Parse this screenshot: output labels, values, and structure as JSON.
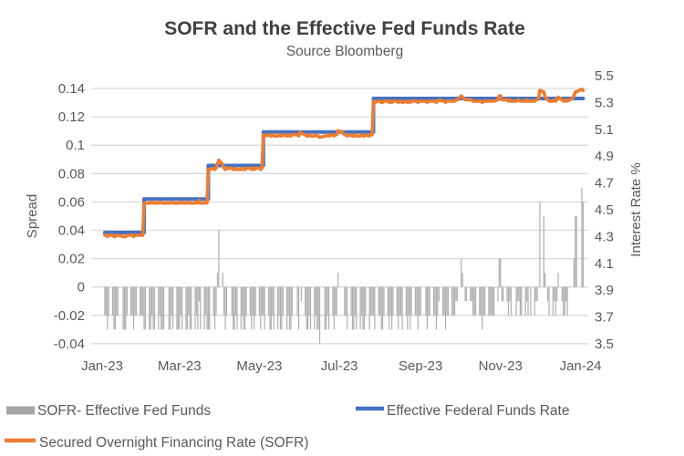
{
  "chart": {
    "title": "SOFR and the Effective Fed Funds Rate",
    "subtitle": "Source Bloomberg",
    "left_axis": {
      "title": "Spread",
      "tick_labels": [
        "0.14",
        "0.12",
        "0.1",
        "0.08",
        "0.06",
        "0.04",
        "0.02",
        "0",
        "-0.02",
        "-0.04"
      ]
    },
    "right_axis": {
      "title": "Interest Rate %",
      "tick_labels": [
        "5.5",
        "5.3",
        "5.1",
        "4.9",
        "4.7",
        "4.5",
        "4.3",
        "4.1",
        "3.9",
        "3.7",
        "3.5"
      ]
    },
    "x_axis": {
      "tick_labels": [
        "Jan-23",
        "Mar-23",
        "May-23",
        "Jul-23",
        "Sep-23",
        "Nov-23",
        "Jan-24"
      ],
      "tick_day_offsets": [
        0,
        59,
        120,
        181,
        243,
        304,
        365
      ]
    },
    "legend": [
      {
        "label": "SOFR- Effective Fed Funds",
        "swatch": "bar"
      },
      {
        "label": "Effective Federal Funds Rate",
        "swatch": "line"
      },
      {
        "label": "Secured Overnight Financing Rate (SOFR)",
        "swatch": "line"
      }
    ],
    "colors": {
      "title": "#404040",
      "text": "#595959",
      "gridline": "#d9d9d9",
      "bar": "#aeaeae",
      "legend_bar_swatch": "#a6a6a6",
      "effr_line": "#4472C4",
      "sofr_line": "#ED7D31"
    }
  },
  "chart_data": {
    "type": "combo",
    "title": "SOFR and the Effective Fed Funds Rate",
    "subtitle": "Source Bloomberg",
    "x_unit": "day offset from 2023-01-01 (0 = Jan 1 2023, weekends skipped in data)",
    "x_range_days": [
      0,
      367
    ],
    "left_axis": {
      "label": "Spread",
      "range": [
        -0.04,
        0.14
      ],
      "note": "bar series axis"
    },
    "right_axis": {
      "label": "Interest Rate %",
      "range": [
        3.5,
        5.5
      ],
      "note": "line series axis"
    },
    "series": [
      {
        "name": "SOFR- Effective Fed Funds",
        "type": "bar",
        "axis": "left",
        "derived": "sofr_daily_value minus effr_step_value, per business day"
      },
      {
        "name": "Effective Federal Funds Rate",
        "type": "line",
        "axis": "right",
        "steps": [
          [
            0,
            4.33
          ],
          [
            32,
            4.58
          ],
          [
            81,
            4.83
          ],
          [
            123,
            5.08
          ],
          [
            207,
            5.33
          ]
        ],
        "start_day": 2,
        "end_day": 367
      },
      {
        "name": "Secured Overnight Financing Rate (SOFR)",
        "type": "line",
        "axis": "right",
        "runs_format": "[start_day, [values on consecutive business days]]",
        "runs": [
          [
            2,
            [
              4.31,
              4.31,
              4.3,
              4.31
            ]
          ],
          [
            8,
            [
              4.31,
              4.3,
              4.3,
              4.31,
              4.31
            ]
          ],
          [
            16,
            [
              4.3,
              4.3,
              4.3,
              4.31
            ]
          ],
          [
            22,
            [
              4.31,
              4.31,
              4.3,
              4.31,
              4.31
            ]
          ],
          [
            29,
            [
              4.31,
              4.31,
              4.31,
              4.55,
              4.55
            ]
          ],
          [
            36,
            [
              4.55,
              4.55,
              4.56,
              4.55,
              4.55
            ]
          ],
          [
            43,
            [
              4.55,
              4.56,
              4.55,
              4.55,
              4.55
            ]
          ],
          [
            51,
            [
              4.55,
              4.55,
              4.56,
              4.55
            ]
          ],
          [
            57,
            [
              4.55,
              4.55,
              4.55,
              4.56,
              4.55
            ]
          ],
          [
            64,
            [
              4.55,
              4.55,
              4.56,
              4.55,
              4.55
            ]
          ],
          [
            71,
            [
              4.55,
              4.56,
              4.55,
              4.57,
              4.55
            ]
          ],
          [
            78,
            [
              4.55,
              4.56,
              4.55,
              4.8,
              4.8
            ]
          ],
          [
            85,
            [
              4.81,
              4.8,
              4.81,
              4.84,
              4.87
            ]
          ],
          [
            92,
            [
              4.84,
              4.81,
              4.8,
              4.81
            ]
          ],
          [
            99,
            [
              4.81,
              4.8,
              4.8,
              4.81,
              4.8
            ]
          ],
          [
            106,
            [
              4.8,
              4.81,
              4.8,
              4.8,
              4.81
            ]
          ],
          [
            113,
            [
              4.81,
              4.8,
              4.81,
              4.8,
              4.81
            ]
          ],
          [
            120,
            [
              4.81,
              4.8,
              4.81,
              5.06,
              5.05
            ]
          ],
          [
            127,
            [
              5.06,
              5.05,
              5.05,
              5.06,
              5.05
            ]
          ],
          [
            134,
            [
              5.05,
              5.06,
              5.05,
              5.05,
              5.06
            ]
          ],
          [
            141,
            [
              5.05,
              5.06,
              5.05,
              5.05,
              5.06
            ]
          ],
          [
            149,
            [
              5.06,
              5.05,
              5.08,
              5.07
            ]
          ],
          [
            155,
            [
              5.06,
              5.05,
              5.05,
              5.06,
              5.05
            ]
          ],
          [
            162,
            [
              5.05,
              5.06,
              5.05,
              5.05,
              5.04
            ]
          ],
          [
            170,
            [
              5.05,
              5.05,
              5.06,
              5.05
            ]
          ],
          [
            176,
            [
              5.06,
              5.05,
              5.06,
              5.06,
              5.09
            ]
          ],
          [
            183,
            [
              5.08
            ]
          ],
          [
            185,
            [
              5.06,
              5.06,
              5.05
            ]
          ],
          [
            190,
            [
              5.06,
              5.05,
              5.05,
              5.06,
              5.05
            ]
          ],
          [
            197,
            [
              5.05,
              5.06,
              5.05,
              5.05,
              5.06
            ]
          ],
          [
            204,
            [
              5.05,
              5.06,
              5.06,
              5.31,
              5.3
            ]
          ],
          [
            211,
            [
              5.31,
              5.31,
              5.3,
              5.3,
              5.31
            ]
          ],
          [
            218,
            [
              5.31,
              5.3,
              5.31,
              5.3,
              5.31
            ]
          ],
          [
            225,
            [
              5.31,
              5.3,
              5.31,
              5.31,
              5.3
            ]
          ],
          [
            232,
            [
              5.31,
              5.3,
              5.31,
              5.3,
              5.31
            ]
          ],
          [
            239,
            [
              5.31,
              5.31,
              5.3,
              5.31,
              5.31
            ]
          ],
          [
            247,
            [
              5.31,
              5.3,
              5.31,
              5.31
            ]
          ],
          [
            253,
            [
              5.31,
              5.31,
              5.3,
              5.31,
              5.32
            ]
          ],
          [
            260,
            [
              5.31,
              5.31,
              5.3,
              5.31,
              5.31
            ]
          ],
          [
            267,
            [
              5.31,
              5.31,
              5.31,
              5.32,
              5.32
            ]
          ],
          [
            274,
            [
              5.35,
              5.34,
              5.33,
              5.32,
              5.32
            ]
          ],
          [
            281,
            [
              5.32,
              5.32,
              5.31,
              5.31,
              5.31
            ]
          ],
          [
            288,
            [
              5.31,
              5.31,
              5.3,
              5.31,
              5.31
            ]
          ],
          [
            295,
            [
              5.31,
              5.31,
              5.31,
              5.31,
              5.31
            ]
          ],
          [
            302,
            [
              5.32,
              5.35,
              5.35,
              5.32,
              5.32
            ]
          ],
          [
            309,
            [
              5.32,
              5.31,
              5.32,
              5.31
            ]
          ],
          [
            316,
            [
              5.31,
              5.32,
              5.32,
              5.31,
              5.31
            ]
          ],
          [
            323,
            [
              5.31,
              5.32,
              5.31
            ]
          ],
          [
            327,
            [
              5.31
            ]
          ],
          [
            330,
            [
              5.31,
              5.32,
              5.32,
              5.33,
              5.39
            ]
          ],
          [
            337,
            [
              5.38,
              5.34,
              5.33,
              5.32,
              5.31
            ]
          ],
          [
            344,
            [
              5.31,
              5.32,
              5.31,
              5.32,
              5.34
            ]
          ],
          [
            351,
            [
              5.32,
              5.31,
              5.31,
              5.32,
              5.31
            ]
          ],
          [
            359,
            [
              5.33,
              5.35,
              5.38,
              5.38
            ]
          ],
          [
            366,
            [
              5.4,
              5.39
            ]
          ]
        ]
      }
    ]
  }
}
